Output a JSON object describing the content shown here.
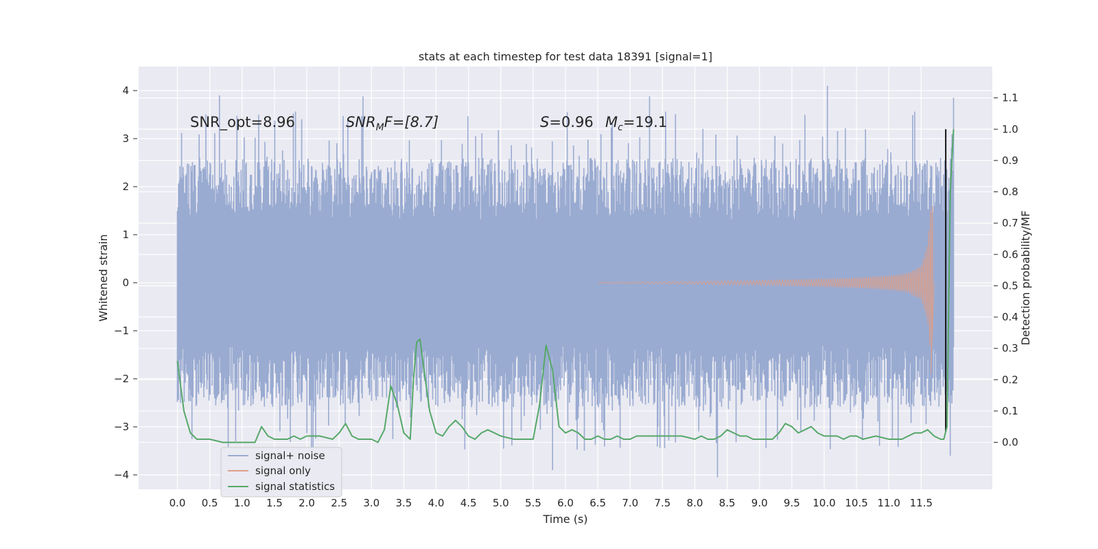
{
  "chart_data": {
    "type": "line",
    "title": "stats at each timestep for test data 18391 [signal=1]",
    "xlabel": "Time (s)",
    "ylabel": "Whitened strain",
    "ylabel_right": "Detection probability/MF",
    "xlim": [
      -0.6,
      12.6
    ],
    "ylim": [
      -4.3,
      4.5
    ],
    "ylim_right": [
      -0.15,
      1.2
    ],
    "x_ticks": [
      "0.0",
      "0.5",
      "1.0",
      "1.5",
      "2.0",
      "2.5",
      "3.0",
      "3.5",
      "4.0",
      "4.5",
      "5.0",
      "5.5",
      "6.0",
      "6.5",
      "7.0",
      "7.5",
      "8.0",
      "8.5",
      "9.0",
      "9.5",
      "10.0",
      "10.5",
      "11.0",
      "11.5"
    ],
    "y_ticks": [
      "−4",
      "−3",
      "−2",
      "−1",
      "0",
      "1",
      "2",
      "3",
      "4"
    ],
    "y_ticks_right": [
      "0.0",
      "0.1",
      "0.2",
      "0.3",
      "0.4",
      "0.5",
      "0.6",
      "0.7",
      "0.8",
      "0.9",
      "1.0",
      "1.1"
    ],
    "grid": true,
    "legend_position": "bottom-left",
    "colors": {
      "background": "#eaeaf2",
      "grid": "#ffffff",
      "noise": "#9aabd1",
      "signal": "#dd9f88",
      "statistic": "#55a868",
      "text": "#262626"
    },
    "annotations": {
      "snr_opt": "SNR_opt=8.96",
      "snr_mf_italic": "SNR",
      "snr_mf_sub": "M",
      "snr_mf_rest": "F=[8.7]",
      "s_italic": "S",
      "s_rest": "=0.96",
      "mc_italic": "M",
      "mc_sub": "c",
      "mc_rest": "=19.1"
    },
    "series": [
      {
        "name": "signal+ noise",
        "core_amplitude": 1.3,
        "typical_peak_range": [
          1.8,
          2.6
        ],
        "max_peaks": [
          3.9,
          -4.1
        ],
        "x_range": [
          0.0,
          12.0
        ]
      },
      {
        "name": "signal only",
        "description_values": {
          "x": [
            6.5,
            8.0,
            9.0,
            10.0,
            10.5,
            11.0,
            11.3,
            11.5,
            11.6,
            11.65,
            11.7
          ],
          "envelope": [
            0.01,
            0.03,
            0.05,
            0.08,
            0.1,
            0.14,
            0.2,
            0.35,
            0.8,
            1.6,
            -1.9
          ]
        }
      },
      {
        "name": "signal statistics",
        "x": [
          0.0,
          0.1,
          0.2,
          0.3,
          0.5,
          0.7,
          1.0,
          1.2,
          1.3,
          1.4,
          1.5,
          1.6,
          1.7,
          1.8,
          1.9,
          2.0,
          2.2,
          2.4,
          2.5,
          2.6,
          2.7,
          2.8,
          2.9,
          3.0,
          3.1,
          3.2,
          3.3,
          3.4,
          3.5,
          3.6,
          3.65,
          3.7,
          3.75,
          3.8,
          3.9,
          4.0,
          4.1,
          4.2,
          4.3,
          4.4,
          4.5,
          4.6,
          4.7,
          4.8,
          5.0,
          5.2,
          5.4,
          5.5,
          5.6,
          5.7,
          5.8,
          5.9,
          6.0,
          6.1,
          6.2,
          6.3,
          6.4,
          6.5,
          6.6,
          6.7,
          6.8,
          6.9,
          7.0,
          7.1,
          7.2,
          7.3,
          7.4,
          7.6,
          7.8,
          8.0,
          8.1,
          8.2,
          8.3,
          8.4,
          8.5,
          8.6,
          8.7,
          8.8,
          8.9,
          9.0,
          9.1,
          9.2,
          9.3,
          9.4,
          9.5,
          9.6,
          9.7,
          9.8,
          9.9,
          10.0,
          10.2,
          10.3,
          10.4,
          10.5,
          10.6,
          10.8,
          11.0,
          11.2,
          11.3,
          11.4,
          11.5,
          11.6,
          11.7,
          11.8,
          11.85,
          11.9,
          11.95,
          12.0
        ],
        "values": [
          0.26,
          0.1,
          0.03,
          0.01,
          0.01,
          0.0,
          0.0,
          0.0,
          0.05,
          0.02,
          0.01,
          0.01,
          0.01,
          0.02,
          0.01,
          0.02,
          0.02,
          0.01,
          0.03,
          0.06,
          0.02,
          0.01,
          0.01,
          0.01,
          0.0,
          0.04,
          0.18,
          0.12,
          0.03,
          0.01,
          0.2,
          0.32,
          0.33,
          0.25,
          0.1,
          0.03,
          0.02,
          0.05,
          0.07,
          0.05,
          0.02,
          0.01,
          0.03,
          0.04,
          0.02,
          0.01,
          0.01,
          0.01,
          0.12,
          0.31,
          0.23,
          0.05,
          0.03,
          0.04,
          0.03,
          0.01,
          0.01,
          0.02,
          0.01,
          0.01,
          0.02,
          0.01,
          0.01,
          0.02,
          0.02,
          0.02,
          0.02,
          0.02,
          0.02,
          0.01,
          0.02,
          0.01,
          0.01,
          0.02,
          0.04,
          0.03,
          0.02,
          0.02,
          0.01,
          0.01,
          0.01,
          0.01,
          0.03,
          0.06,
          0.05,
          0.03,
          0.04,
          0.05,
          0.03,
          0.02,
          0.02,
          0.01,
          0.02,
          0.02,
          0.01,
          0.02,
          0.01,
          0.01,
          0.02,
          0.03,
          0.03,
          0.04,
          0.02,
          0.01,
          0.01,
          0.05,
          0.8,
          1.0
        ]
      }
    ]
  }
}
